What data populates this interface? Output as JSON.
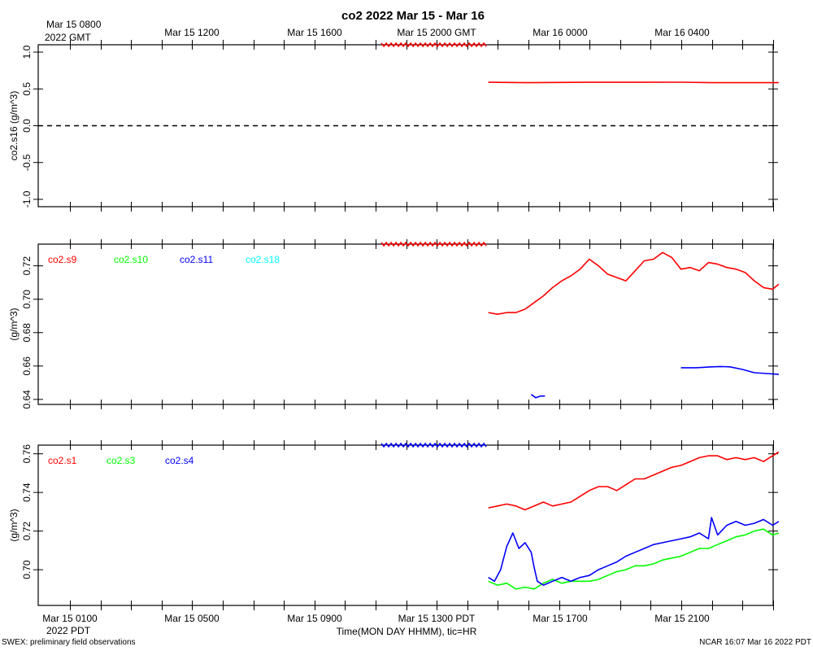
{
  "title": "co2 2022 Mar 15 - Mar 16",
  "top_axis": {
    "first_label_line1": "Mar 15 0800",
    "first_label_line2": "2022 GMT",
    "labels": [
      "Mar 15 1200",
      "Mar 15 1600",
      "Mar 15 2000 GMT",
      "Mar 16 0000",
      "Mar 16 0400"
    ]
  },
  "bottom_axis": {
    "labels": [
      "Mar 15 0100",
      "Mar 15 0500",
      "Mar 15 0900",
      "Mar 15 1300 PDT",
      "Mar 15 1700",
      "Mar 15 2100"
    ],
    "first_label_line2": "2022 PDT",
    "xlabel": "Time(MON DAY HHMM), tic=HR"
  },
  "footer": {
    "left": "SWEX: preliminary field observations",
    "right": "NCAR 16:07 Mar 16 2022 PDT"
  },
  "colors": {
    "red": "#ff0000",
    "green": "#00ff00",
    "blue": "#0000ff",
    "cyan": "#00ffff"
  },
  "chart_data": [
    {
      "type": "line",
      "ylabel": "co2.s16 (g/m^3)",
      "x_unit": "hours since Mar 15 0000 PDT",
      "xlim": [
        0,
        24.2
      ],
      "ylim": [
        -1.1,
        1.1
      ],
      "yticks": [
        -1.0,
        -0.5,
        0.0,
        0.5,
        1.0
      ],
      "ytick_labels": [
        "-1.0",
        "-0.5",
        "0.0",
        "0.5",
        "1.0"
      ],
      "zero_line": true,
      "flag_marker": {
        "color": "#ff0000",
        "x_range": [
          11.2,
          14.7
        ]
      },
      "legend": [],
      "series": [
        {
          "color": "#ff0000",
          "x": [
            14.7,
            16,
            18,
            20,
            21,
            22,
            24.2
          ],
          "y": [
            0.59,
            0.585,
            0.59,
            0.59,
            0.592,
            0.585,
            0.585
          ]
        }
      ]
    },
    {
      "type": "line",
      "ylabel": "(g/m^3)",
      "x_unit": "hours since Mar 15 0000 PDT",
      "xlim": [
        0,
        24.2
      ],
      "ylim": [
        0.637,
        0.733
      ],
      "yticks": [
        0.64,
        0.66,
        0.68,
        0.7,
        0.72
      ],
      "ytick_labels": [
        "0.64",
        "0.66",
        "0.68",
        "0.70",
        "0.72"
      ],
      "flag_marker": {
        "color": "#ff0000",
        "x_range": [
          11.2,
          14.7
        ]
      },
      "legend": [
        {
          "name": "co2.s9",
          "color": "#ff0000"
        },
        {
          "name": "co2.s10",
          "color": "#00ff00"
        },
        {
          "name": "co2.s11",
          "color": "#0000ff"
        },
        {
          "name": "co2.s18",
          "color": "#00ffff"
        }
      ],
      "series": [
        {
          "name": "co2.s9",
          "color": "#ff0000",
          "x": [
            14.7,
            15.0,
            15.3,
            15.6,
            15.9,
            16.2,
            16.5,
            16.8,
            17.1,
            17.4,
            17.7,
            18.0,
            18.3,
            18.6,
            18.9,
            19.2,
            19.5,
            19.8,
            20.1,
            20.4,
            20.7,
            21.0,
            21.3,
            21.6,
            21.9,
            22.2,
            22.5,
            22.8,
            23.1,
            23.4,
            23.7,
            24.0,
            24.2
          ],
          "y": [
            0.692,
            0.691,
            0.692,
            0.692,
            0.694,
            0.698,
            0.702,
            0.707,
            0.711,
            0.714,
            0.718,
            0.724,
            0.72,
            0.715,
            0.713,
            0.711,
            0.717,
            0.723,
            0.724,
            0.728,
            0.725,
            0.718,
            0.719,
            0.717,
            0.722,
            0.721,
            0.719,
            0.718,
            0.716,
            0.711,
            0.707,
            0.706,
            0.709
          ]
        },
        {
          "name": "co2.s11",
          "color": "#0000ff",
          "x": [
            16.1,
            16.25,
            16.4,
            16.55
          ],
          "y": [
            0.643,
            0.641,
            0.642,
            0.642
          ]
        },
        {
          "name": "co2.s11",
          "color": "#0000ff",
          "x": [
            21.0,
            21.5,
            22.0,
            22.3,
            22.6,
            23.0,
            23.4,
            23.8,
            24.2
          ],
          "y": [
            0.659,
            0.659,
            0.6595,
            0.6597,
            0.6595,
            0.658,
            0.656,
            0.6555,
            0.655
          ]
        }
      ]
    },
    {
      "type": "line",
      "ylabel": "(g/m^3)",
      "x_unit": "hours since Mar 15 0000 PDT",
      "xlim": [
        0,
        24.2
      ],
      "ylim": [
        0.6815,
        0.7645
      ],
      "yticks": [
        0.7,
        0.72,
        0.74,
        0.76
      ],
      "ytick_labels": [
        "0.70",
        "0.72",
        "0.74",
        "0.76"
      ],
      "flag_marker": {
        "color": "#0000ff",
        "x_range": [
          11.2,
          14.7
        ]
      },
      "legend": [
        {
          "name": "co2.s1",
          "color": "#ff0000"
        },
        {
          "name": "co2.s3",
          "color": "#00ff00"
        },
        {
          "name": "co2.s4",
          "color": "#0000ff"
        }
      ],
      "series": [
        {
          "name": "co2.s1",
          "color": "#ff0000",
          "x": [
            14.7,
            15.0,
            15.3,
            15.6,
            15.9,
            16.2,
            16.5,
            16.8,
            17.1,
            17.4,
            17.7,
            18.0,
            18.3,
            18.6,
            18.9,
            19.2,
            19.5,
            19.8,
            20.1,
            20.4,
            20.7,
            21.0,
            21.3,
            21.6,
            21.9,
            22.2,
            22.5,
            22.8,
            23.1,
            23.4,
            23.7,
            24.0,
            24.2
          ],
          "y": [
            0.732,
            0.733,
            0.734,
            0.733,
            0.731,
            0.733,
            0.735,
            0.733,
            0.734,
            0.735,
            0.738,
            0.741,
            0.743,
            0.743,
            0.741,
            0.744,
            0.747,
            0.747,
            0.749,
            0.751,
            0.753,
            0.754,
            0.756,
            0.758,
            0.759,
            0.759,
            0.757,
            0.758,
            0.757,
            0.758,
            0.756,
            0.759,
            0.761
          ]
        },
        {
          "name": "co2.s3",
          "color": "#00ff00",
          "x": [
            14.7,
            15.0,
            15.3,
            15.6,
            15.9,
            16.2,
            16.5,
            16.8,
            17.1,
            17.4,
            17.7,
            18.0,
            18.3,
            18.6,
            18.9,
            19.2,
            19.5,
            19.8,
            20.1,
            20.4,
            20.7,
            21.0,
            21.3,
            21.6,
            21.9,
            22.2,
            22.5,
            22.8,
            23.1,
            23.4,
            23.7,
            24.0,
            24.2
          ],
          "y": [
            0.694,
            0.692,
            0.693,
            0.69,
            0.691,
            0.69,
            0.693,
            0.695,
            0.693,
            0.694,
            0.694,
            0.694,
            0.695,
            0.697,
            0.699,
            0.7,
            0.702,
            0.702,
            0.703,
            0.705,
            0.706,
            0.707,
            0.709,
            0.711,
            0.711,
            0.713,
            0.715,
            0.717,
            0.718,
            0.72,
            0.721,
            0.718,
            0.719
          ]
        },
        {
          "name": "co2.s4",
          "color": "#0000ff",
          "x": [
            14.7,
            14.9,
            15.1,
            15.3,
            15.5,
            15.7,
            15.9,
            16.1,
            16.2,
            16.3,
            16.5,
            16.8,
            17.1,
            17.4,
            17.7,
            18.0,
            18.3,
            18.6,
            18.9,
            19.2,
            19.5,
            19.8,
            20.1,
            20.4,
            20.7,
            21.0,
            21.3,
            21.6,
            21.9,
            22.0,
            22.2,
            22.5,
            22.8,
            23.1,
            23.4,
            23.7,
            24.0,
            24.2
          ],
          "y": [
            0.696,
            0.694,
            0.7,
            0.712,
            0.719,
            0.711,
            0.714,
            0.709,
            0.701,
            0.694,
            0.692,
            0.694,
            0.696,
            0.694,
            0.696,
            0.697,
            0.7,
            0.702,
            0.704,
            0.707,
            0.709,
            0.711,
            0.713,
            0.714,
            0.715,
            0.716,
            0.717,
            0.719,
            0.716,
            0.727,
            0.718,
            0.723,
            0.725,
            0.723,
            0.724,
            0.726,
            0.723,
            0.725
          ]
        }
      ]
    }
  ]
}
